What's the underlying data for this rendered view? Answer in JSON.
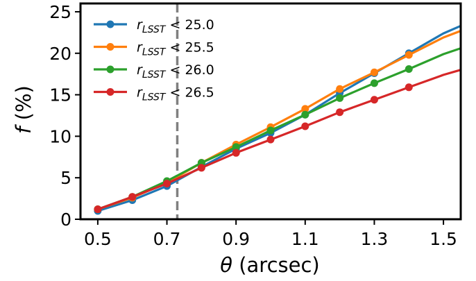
{
  "chart_data": {
    "type": "line",
    "xlabel": {
      "symbol": "θ",
      "rest": " (arcsec)"
    },
    "ylabel": {
      "symbol": "f",
      "rest": " (%)"
    },
    "xlim": [
      0.45,
      1.55
    ],
    "ylim": [
      0,
      26
    ],
    "xticks": [
      "0.5",
      "0.7",
      "0.9",
      "1.1",
      "1.3",
      "1.5"
    ],
    "yticks": [
      "0",
      "5",
      "10",
      "15",
      "20",
      "25"
    ],
    "grid": false,
    "legend_position": "top-left",
    "reference_line": {
      "x": 0.73,
      "style": "dashed",
      "color": "#808080"
    },
    "x": [
      0.5,
      0.6,
      0.7,
      0.8,
      0.9,
      1.0,
      1.1,
      1.2,
      1.3,
      1.4,
      1.5,
      1.55
    ],
    "series": [
      {
        "name": {
          "var": "r",
          "sub": "LSST",
          "cond": " < 25.0"
        },
        "color": "#1f77b4",
        "values": [
          1.0,
          2.3,
          4.0,
          6.3,
          8.5,
          10.4,
          12.6,
          15.2,
          17.6,
          20.0,
          22.4,
          23.3
        ]
      },
      {
        "name": {
          "var": "r",
          "sub": "LSST",
          "cond": " < 25.5"
        },
        "color": "#ff7f0e",
        "values": [
          1.2,
          2.6,
          4.4,
          6.8,
          9.0,
          11.1,
          13.3,
          15.7,
          17.7,
          19.8,
          21.9,
          22.7
        ]
      },
      {
        "name": {
          "var": "r",
          "sub": "LSST",
          "cond": " < 26.0"
        },
        "color": "#2ca02c",
        "values": [
          1.2,
          2.7,
          4.6,
          6.8,
          8.7,
          10.7,
          12.6,
          14.6,
          16.4,
          18.1,
          19.9,
          20.6
        ]
      },
      {
        "name": {
          "var": "r",
          "sub": "LSST",
          "cond": " < 26.5"
        },
        "color": "#d62728",
        "values": [
          1.2,
          2.7,
          4.3,
          6.2,
          8.0,
          9.6,
          11.2,
          12.9,
          14.4,
          15.9,
          17.4,
          18.0
        ]
      }
    ]
  }
}
